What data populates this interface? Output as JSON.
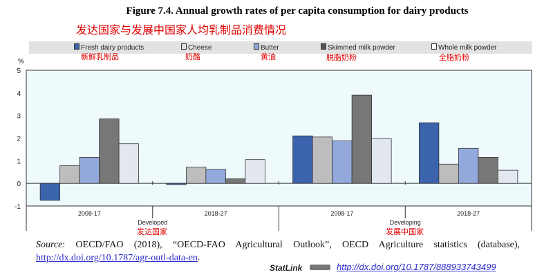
{
  "chart_data": {
    "type": "bar",
    "title": "Figure 7.4. Annual growth rates of per capita consumption for dairy products",
    "title_cn": "发达国家与发展中国家人均乳制品消费情况",
    "ylabel": "%",
    "ylim": [
      -1,
      5
    ],
    "yticks": [
      "5",
      "4",
      "3",
      "2",
      "1",
      "0",
      "-1"
    ],
    "yticks_num": [
      5,
      4,
      3,
      2,
      1,
      0,
      -1
    ],
    "categories": [
      "2008-17",
      "2018-27",
      "2008-17",
      "2018-27"
    ],
    "groups": [
      {
        "label": "Developed",
        "label_cn": "发达国家"
      },
      {
        "label": "Developing",
        "label_cn": "发展中国家"
      }
    ],
    "series": [
      {
        "name": "Fresh dairy products",
        "name_cn": "新鲜乳制品",
        "color": "#3b64ad",
        "values": [
          -0.75,
          -0.05,
          2.1,
          2.68
        ]
      },
      {
        "name": "Cheese",
        "name_cn": "奶酪",
        "color": "#bdbdbd",
        "values": [
          0.78,
          0.72,
          2.05,
          0.85
        ]
      },
      {
        "name": "Butter",
        "name_cn": "黄油",
        "color": "#93a9dc",
        "values": [
          1.15,
          0.62,
          1.88,
          1.55
        ]
      },
      {
        "name": "Skimmed milk powder",
        "name_cn": "脱脂奶粉",
        "color": "#777777",
        "values": [
          2.85,
          0.2,
          3.9,
          1.15
        ]
      },
      {
        "name": "Whole milk powder",
        "name_cn": "全脂奶粉",
        "color": "#e3e8f0",
        "values": [
          1.75,
          1.05,
          1.98,
          0.58
        ]
      }
    ],
    "legend": "top"
  },
  "source": {
    "label": "Source",
    "text": ": OECD/FAO (2018), “OECD-FAO Agricultural Outlook”, OECD Agriculture statistics (database), ",
    "link": "http://dx.doi.org/10.1787/agr-outl-data-en",
    "end": "."
  },
  "statlink": {
    "label": "StatLink",
    "link": "http://dx.doi.org/10.1787/888933743499"
  }
}
